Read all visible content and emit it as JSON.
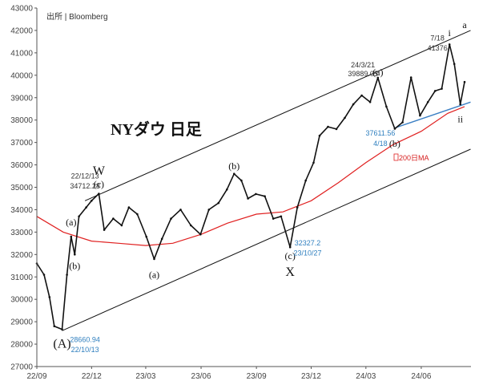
{
  "source": "出所 | Bloomberg",
  "title": "NYダウ 日足",
  "colors": {
    "price": "#111111",
    "ma": "#e02020",
    "channel": "#111111",
    "support": "#3a7fc4",
    "blue_text": "#2f7fbf",
    "ma_text": "#d62020"
  },
  "chart_data": {
    "type": "line",
    "title": "NYダウ 日足",
    "xlabel": "",
    "ylabel": "",
    "x_ticks": [
      "22/09",
      "22/12",
      "23/03",
      "23/06",
      "23/09",
      "23/12",
      "24/03",
      "24/06"
    ],
    "y_ticks": [
      27000,
      28000,
      29000,
      30000,
      31000,
      32000,
      33000,
      34000,
      35000,
      36000,
      37000,
      38000,
      39000,
      40000,
      41000,
      42000,
      43000
    ],
    "ylim": [
      27000,
      43000
    ],
    "xlim": [
      "2022-09-01",
      "2024-08-12"
    ],
    "series": [
      {
        "name": "",
        "values": [
          {
            "x": "2022-09-01",
            "y": 31600
          },
          {
            "x": "2022-09-13",
            "y": 31100
          },
          {
            "x": "2022-09-22",
            "y": 30100
          },
          {
            "x": "2022-09-30",
            "y": 28800
          },
          {
            "x": "2022-10-13",
            "y": 28660.94
          },
          {
            "x": "2022-10-21",
            "y": 31100
          },
          {
            "x": "2022-10-28",
            "y": 32800
          },
          {
            "x": "2022-11-03",
            "y": 32000
          },
          {
            "x": "2022-11-10",
            "y": 33700
          },
          {
            "x": "2022-11-22",
            "y": 34100
          },
          {
            "x": "2022-12-01",
            "y": 34400
          },
          {
            "x": "2022-12-13",
            "y": 34712.28
          },
          {
            "x": "2022-12-22",
            "y": 33100
          },
          {
            "x": "2023-01-06",
            "y": 33600
          },
          {
            "x": "2023-01-20",
            "y": 33300
          },
          {
            "x": "2023-02-01",
            "y": 34100
          },
          {
            "x": "2023-02-15",
            "y": 33800
          },
          {
            "x": "2023-03-02",
            "y": 32800
          },
          {
            "x": "2023-03-15",
            "y": 31800
          },
          {
            "x": "2023-03-28",
            "y": 32700
          },
          {
            "x": "2023-04-12",
            "y": 33600
          },
          {
            "x": "2023-04-28",
            "y": 34000
          },
          {
            "x": "2023-05-15",
            "y": 33300
          },
          {
            "x": "2023-05-31",
            "y": 32900
          },
          {
            "x": "2023-06-14",
            "y": 34000
          },
          {
            "x": "2023-06-30",
            "y": 34300
          },
          {
            "x": "2023-07-14",
            "y": 34900
          },
          {
            "x": "2023-07-26",
            "y": 35600
          },
          {
            "x": "2023-08-07",
            "y": 35300
          },
          {
            "x": "2023-08-18",
            "y": 34500
          },
          {
            "x": "2023-08-31",
            "y": 34700
          },
          {
            "x": "2023-09-15",
            "y": 34600
          },
          {
            "x": "2023-09-29",
            "y": 33600
          },
          {
            "x": "2023-10-12",
            "y": 33700
          },
          {
            "x": "2023-10-27",
            "y": 32327.2
          },
          {
            "x": "2023-11-08",
            "y": 34100
          },
          {
            "x": "2023-11-22",
            "y": 35300
          },
          {
            "x": "2023-12-05",
            "y": 36100
          },
          {
            "x": "2023-12-15",
            "y": 37300
          },
          {
            "x": "2023-12-29",
            "y": 37700
          },
          {
            "x": "2024-01-12",
            "y": 37600
          },
          {
            "x": "2024-01-26",
            "y": 38100
          },
          {
            "x": "2024-02-09",
            "y": 38700
          },
          {
            "x": "2024-02-23",
            "y": 39100
          },
          {
            "x": "2024-03-08",
            "y": 38800
          },
          {
            "x": "2024-03-21",
            "y": 39889.05
          },
          {
            "x": "2024-04-04",
            "y": 38600
          },
          {
            "x": "2024-04-18",
            "y": 37611.56
          },
          {
            "x": "2024-05-01",
            "y": 37900
          },
          {
            "x": "2024-05-15",
            "y": 39900
          },
          {
            "x": "2024-05-30",
            "y": 38200
          },
          {
            "x": "2024-06-12",
            "y": 38800
          },
          {
            "x": "2024-06-24",
            "y": 39300
          },
          {
            "x": "2024-07-05",
            "y": 39400
          },
          {
            "x": "2024-07-18",
            "y": 41376
          },
          {
            "x": "2024-07-26",
            "y": 40500
          },
          {
            "x": "2024-08-05",
            "y": 38700
          },
          {
            "x": "2024-08-12",
            "y": 39700
          }
        ]
      },
      {
        "name": "200日MA",
        "values": [
          {
            "x": "2022-09-01",
            "y": 33700
          },
          {
            "x": "2022-10-15",
            "y": 33000
          },
          {
            "x": "2022-12-01",
            "y": 32600
          },
          {
            "x": "2023-01-15",
            "y": 32500
          },
          {
            "x": "2023-03-01",
            "y": 32400
          },
          {
            "x": "2023-04-15",
            "y": 32500
          },
          {
            "x": "2023-06-01",
            "y": 32900
          },
          {
            "x": "2023-07-15",
            "y": 33400
          },
          {
            "x": "2023-09-01",
            "y": 33800
          },
          {
            "x": "2023-10-15",
            "y": 33900
          },
          {
            "x": "2023-12-01",
            "y": 34400
          },
          {
            "x": "2024-01-15",
            "y": 35200
          },
          {
            "x": "2024-03-01",
            "y": 36100
          },
          {
            "x": "2024-04-15",
            "y": 36900
          },
          {
            "x": "2024-06-01",
            "y": 37500
          },
          {
            "x": "2024-07-15",
            "y": 38300
          },
          {
            "x": "2024-08-12",
            "y": 38600
          }
        ]
      }
    ],
    "trendlines": [
      {
        "name": "channel-upper",
        "from": {
          "x": "2022-11-20",
          "y": 34400
        },
        "to": {
          "x": "2024-08-22",
          "y": 42000
        }
      },
      {
        "name": "channel-lower",
        "from": {
          "x": "2022-10-13",
          "y": 28600
        },
        "to": {
          "x": "2024-08-22",
          "y": 36700
        }
      },
      {
        "name": "support-line",
        "from": {
          "x": "2024-04-18",
          "y": 37650
        },
        "to": {
          "x": "2024-08-22",
          "y": 38800
        }
      }
    ],
    "annotations": [
      {
        "text": "W",
        "x": "2022-12-13",
        "y": 35550,
        "style": "wave-big"
      },
      {
        "text": "(c)",
        "x": "2022-12-13",
        "y": 35000,
        "style": "wave"
      },
      {
        "text": "22/12/13",
        "x": "2022-11-20",
        "y": 35400,
        "style": "ann"
      },
      {
        "text": "34712.28",
        "x": "2022-11-20",
        "y": 34950,
        "style": "ann"
      },
      {
        "text": "(a)",
        "x": "2022-10-28",
        "y": 33300,
        "style": "wave"
      },
      {
        "text": "(b)",
        "x": "2022-11-03",
        "y": 31350,
        "style": "wave"
      },
      {
        "text": "(A)",
        "x": "2022-10-13",
        "y": 27850,
        "style": "wave-big"
      },
      {
        "text": "28660.94",
        "x": "2022-11-20",
        "y": 28100,
        "style": "ann-blue"
      },
      {
        "text": "22/10/13",
        "x": "2022-11-20",
        "y": 27650,
        "style": "ann-blue"
      },
      {
        "text": "(a)",
        "x": "2023-03-15",
        "y": 30950,
        "style": "wave"
      },
      {
        "text": "(b)",
        "x": "2023-07-26",
        "y": 35800,
        "style": "wave"
      },
      {
        "text": "(c)",
        "x": "2023-10-27",
        "y": 31800,
        "style": "wave"
      },
      {
        "text": "X",
        "x": "2023-10-27",
        "y": 31050,
        "style": "wave-big"
      },
      {
        "text": "32327.2",
        "x": "2023-11-25",
        "y": 32400,
        "style": "ann-blue"
      },
      {
        "text": "23/10/27",
        "x": "2023-11-25",
        "y": 31950,
        "style": "ann-blue"
      },
      {
        "text": "24/3/21",
        "x": "2024-02-25",
        "y": 40350,
        "style": "ann"
      },
      {
        "text": "39889.05",
        "x": "2024-02-25",
        "y": 39950,
        "style": "ann"
      },
      {
        "text": "(a)",
        "x": "2024-03-21",
        "y": 40000,
        "style": "wave"
      },
      {
        "text": "(b)",
        "x": "2024-04-18",
        "y": 36800,
        "style": "wave"
      },
      {
        "text": "37611.56",
        "x": "2024-03-25",
        "y": 37300,
        "style": "ann-blue"
      },
      {
        "text": "4/18",
        "x": "2024-03-25",
        "y": 36850,
        "style": "ann-blue"
      },
      {
        "text": "7/18",
        "x": "2024-06-28",
        "y": 41550,
        "style": "ann"
      },
      {
        "text": "41376",
        "x": "2024-06-28",
        "y": 41100,
        "style": "ann"
      },
      {
        "text": "i",
        "x": "2024-07-18",
        "y": 41750,
        "style": "wave"
      },
      {
        "text": "ii",
        "x": "2024-08-05",
        "y": 37900,
        "style": "wave"
      },
      {
        "text": "a",
        "x": "2024-08-12",
        "y": 42100,
        "style": "wave"
      }
    ],
    "legend": "none",
    "grid": false
  }
}
